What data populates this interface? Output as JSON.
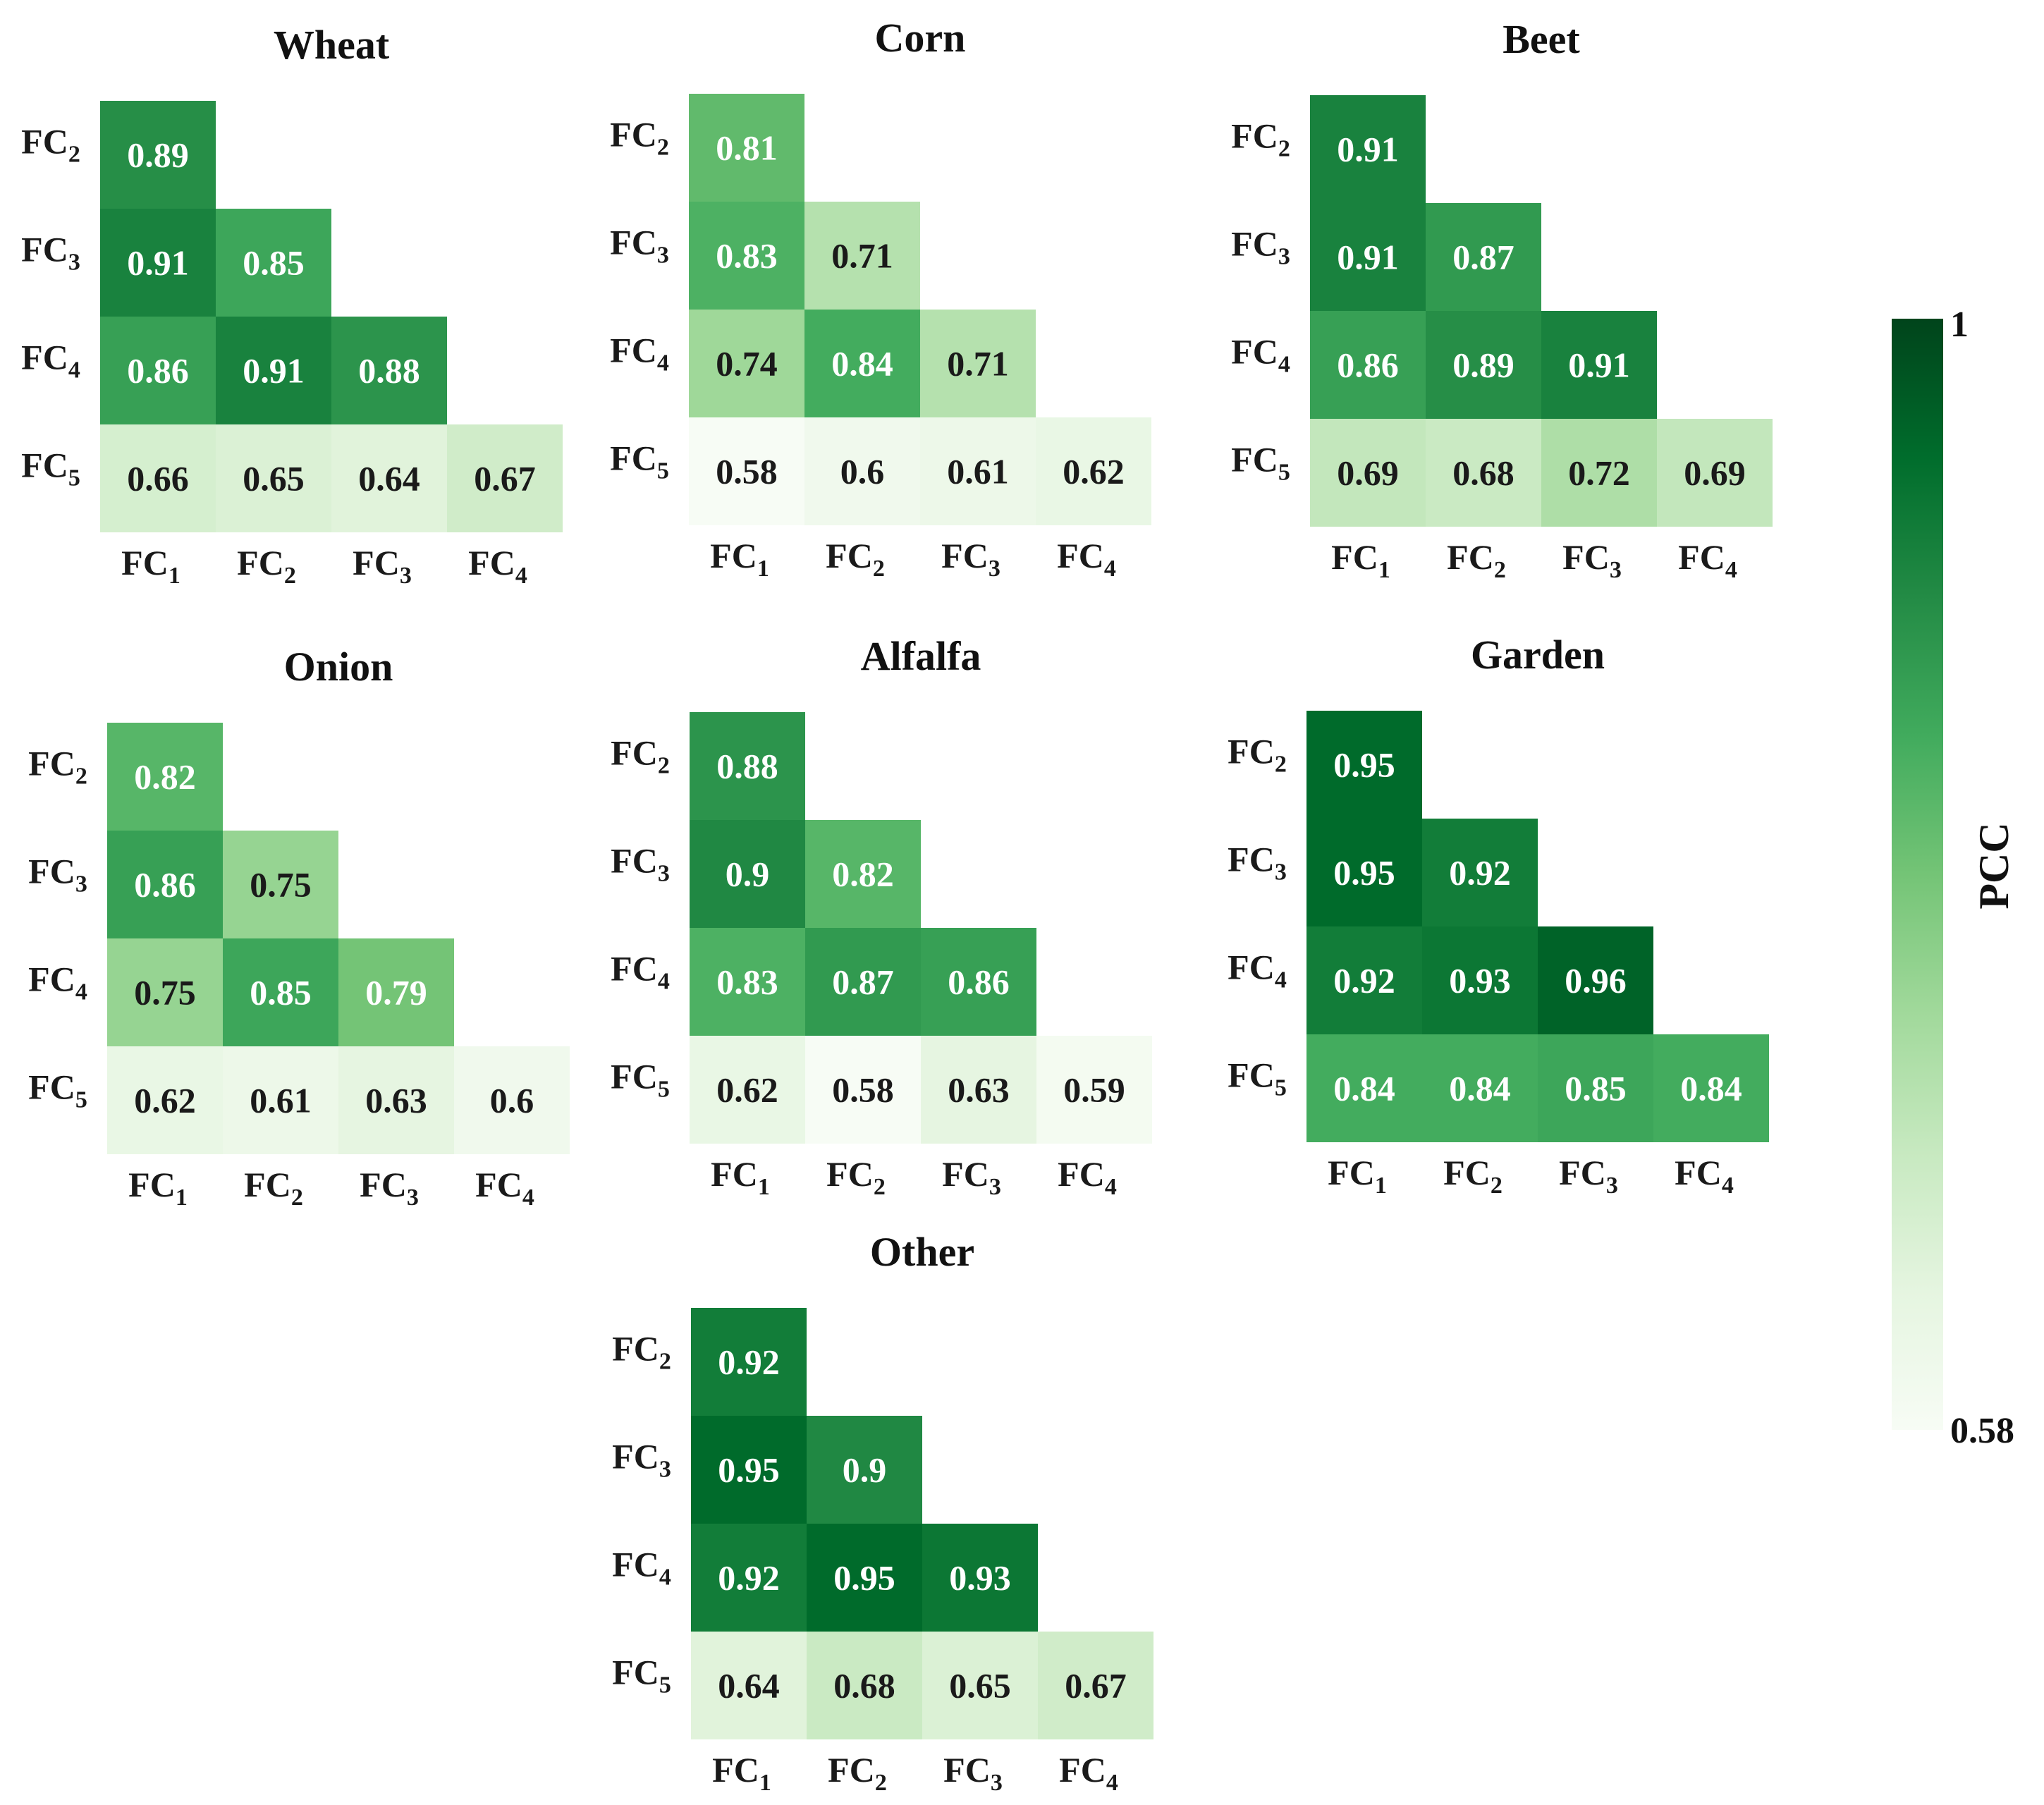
{
  "chart_data": {
    "type": "heatmap",
    "value_range": [
      0.58,
      1
    ],
    "colormap": [
      "#f7fcf5",
      "#e5f5e0",
      "#c7e9c0",
      "#a1d99b",
      "#74c476",
      "#41ab5d",
      "#238b45",
      "#006d2c",
      "#00441b"
    ],
    "row_labels": [
      "FC2",
      "FC3",
      "FC4",
      "FC5"
    ],
    "column_labels": [
      "FC1",
      "FC2",
      "FC3",
      "FC4"
    ],
    "layout": "lower-triangular",
    "panels": [
      {
        "title": "Wheat",
        "values": [
          [
            0.89
          ],
          [
            0.91,
            0.85
          ],
          [
            0.86,
            0.91,
            0.88
          ],
          [
            0.66,
            0.65,
            0.64,
            0.67
          ]
        ]
      },
      {
        "title": "Corn",
        "values": [
          [
            0.81
          ],
          [
            0.83,
            0.71
          ],
          [
            0.74,
            0.84,
            0.71
          ],
          [
            0.58,
            0.6,
            0.61,
            0.62
          ]
        ]
      },
      {
        "title": "Beet",
        "values": [
          [
            0.91
          ],
          [
            0.91,
            0.87
          ],
          [
            0.86,
            0.89,
            0.91
          ],
          [
            0.69,
            0.68,
            0.72,
            0.69
          ]
        ]
      },
      {
        "title": "Onion",
        "values": [
          [
            0.82
          ],
          [
            0.86,
            0.75
          ],
          [
            0.75,
            0.85,
            0.79
          ],
          [
            0.62,
            0.61,
            0.63,
            0.6
          ]
        ]
      },
      {
        "title": "Alfalfa",
        "values": [
          [
            0.88
          ],
          [
            0.9,
            0.82
          ],
          [
            0.83,
            0.87,
            0.86
          ],
          [
            0.62,
            0.58,
            0.63,
            0.59
          ]
        ]
      },
      {
        "title": "Garden",
        "values": [
          [
            0.95
          ],
          [
            0.95,
            0.92
          ],
          [
            0.92,
            0.93,
            0.96
          ],
          [
            0.84,
            0.84,
            0.85,
            0.84
          ]
        ]
      },
      {
        "title": "Other",
        "values": [
          [
            0.92
          ],
          [
            0.95,
            0.9
          ],
          [
            0.92,
            0.95,
            0.93
          ],
          [
            0.64,
            0.68,
            0.65,
            0.67
          ]
        ]
      }
    ],
    "colorbar": {
      "label": "PCC",
      "max_label": "1",
      "min_label": "0.58"
    }
  }
}
